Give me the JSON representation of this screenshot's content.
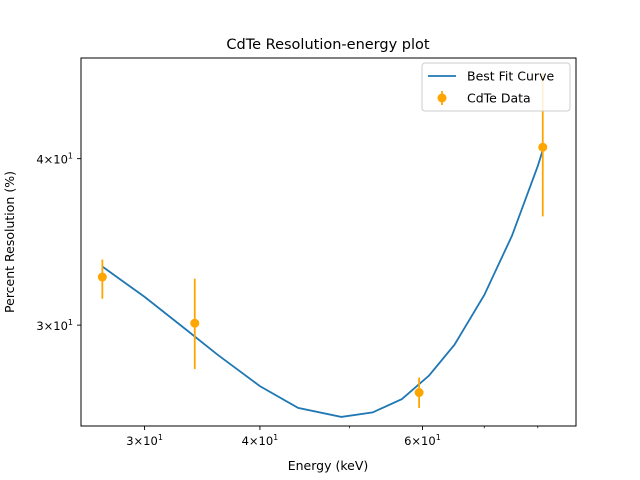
{
  "chart_data": {
    "type": "scatter",
    "title": "CdTe Resolution-energy plot",
    "xlabel": "Energy (keV)",
    "ylabel": "Percent Resolution (%)",
    "x_scale": "log",
    "y_scale": "log",
    "xlim": [
      25.6,
      88.0
    ],
    "ylim": [
      25.2,
      47.6
    ],
    "x_ticks": [
      {
        "value": 30,
        "base": "3",
        "exp": "1"
      },
      {
        "value": 40,
        "base": "4",
        "exp": "1"
      },
      {
        "value": 60,
        "base": "6",
        "exp": "1"
      }
    ],
    "y_ticks": [
      {
        "value": 30,
        "base": "3",
        "exp": "1"
      },
      {
        "value": 40,
        "base": "4",
        "exp": "1"
      }
    ],
    "legend": {
      "position": "top-right",
      "entries": [
        {
          "label": "Best Fit Curve",
          "kind": "line",
          "color": "#1f77b4"
        },
        {
          "label": "CdTe Data",
          "kind": "errorbar",
          "color": "#ffa500"
        }
      ]
    },
    "series": [
      {
        "name": "CdTe Data",
        "color": "#ffa500",
        "points": [
          {
            "x": 27.0,
            "y": 32.6,
            "err_low": 1.2,
            "err_high": 1.0
          },
          {
            "x": 34.0,
            "y": 30.1,
            "err_low": 2.3,
            "err_high": 2.4
          },
          {
            "x": 59.5,
            "y": 26.7,
            "err_low": 0.7,
            "err_high": 0.7
          },
          {
            "x": 81.0,
            "y": 40.8,
            "err_low": 4.6,
            "err_high": 5.6
          }
        ]
      },
      {
        "name": "Best Fit Curve",
        "color": "#1f77b4",
        "points": [
          {
            "x": 27.0,
            "y": 33.2
          },
          {
            "x": 30.0,
            "y": 31.5
          },
          {
            "x": 33.0,
            "y": 29.9
          },
          {
            "x": 36.0,
            "y": 28.5
          },
          {
            "x": 40.0,
            "y": 27.0
          },
          {
            "x": 44.0,
            "y": 26.0
          },
          {
            "x": 49.0,
            "y": 25.6
          },
          {
            "x": 53.0,
            "y": 25.8
          },
          {
            "x": 57.0,
            "y": 26.4
          },
          {
            "x": 61.0,
            "y": 27.5
          },
          {
            "x": 65.0,
            "y": 29.0
          },
          {
            "x": 70.0,
            "y": 31.6
          },
          {
            "x": 75.0,
            "y": 35.0
          },
          {
            "x": 80.0,
            "y": 39.5
          },
          {
            "x": 81.0,
            "y": 40.6
          }
        ]
      }
    ]
  }
}
